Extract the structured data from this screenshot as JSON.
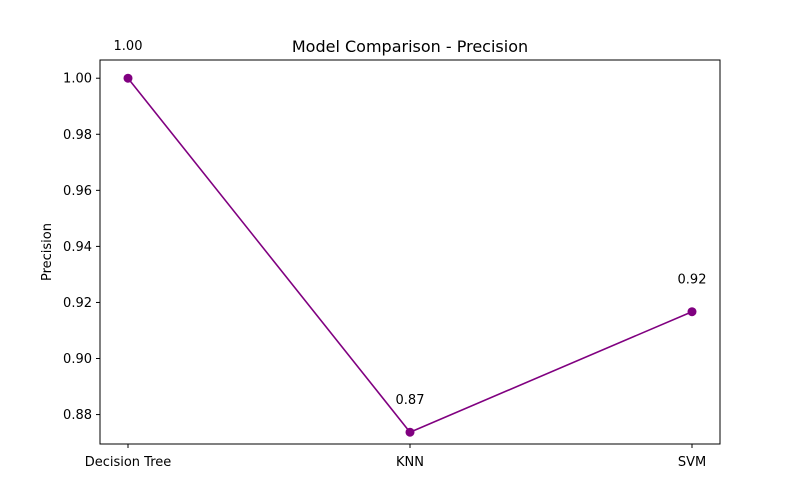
{
  "chart_data": {
    "type": "line",
    "title": "Model Comparison - Precision",
    "xlabel": "",
    "ylabel": "Precision",
    "categories": [
      "Decision Tree",
      "KNN",
      "SVM"
    ],
    "series": [
      {
        "values": [
          1.0,
          0.8737,
          0.9167
        ],
        "color": "#800080"
      }
    ],
    "data_labels": [
      "1.00",
      "0.87",
      "0.92"
    ],
    "ylim": [
      0.8695,
      1.0065
    ],
    "yticks": [
      0.88,
      0.9,
      0.92,
      0.94,
      0.96,
      0.98,
      1.0
    ],
    "ytick_labels": [
      "0.88",
      "0.90",
      "0.92",
      "0.94",
      "0.96",
      "0.98",
      "1.00"
    ],
    "grid": false,
    "marker": "circle"
  }
}
